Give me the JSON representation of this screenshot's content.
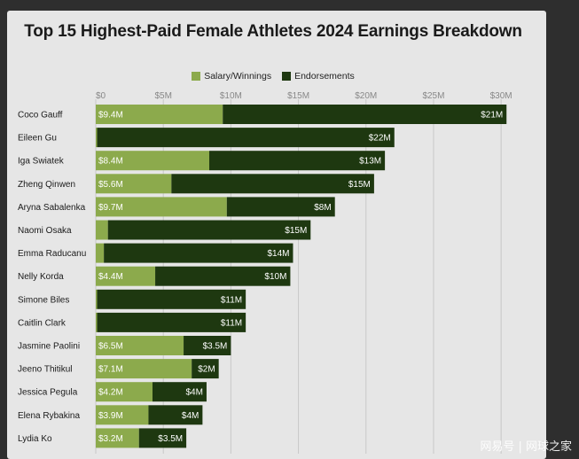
{
  "colors": {
    "salary": "#8caa4c",
    "endorsements": "#1e3810",
    "grid": "#c8c8c8",
    "axis_text": "#888888"
  },
  "watermark": "网易号 | 网球之家",
  "chart_data": {
    "type": "bar",
    "orientation": "horizontal",
    "stacked": true,
    "title": "Top 15 Highest-Paid Female Athletes 2024 Earnings Breakdown",
    "legend_position": "top",
    "grid": true,
    "xlim": [
      0,
      31.5
    ],
    "x_ticks": [
      0,
      5,
      10,
      15,
      20,
      25,
      30
    ],
    "x_tick_labels": [
      "$0",
      "$5M",
      "$10M",
      "$15M",
      "$20M",
      "$25M",
      "$30M"
    ],
    "categories": [
      "Coco Gauff",
      "Eileen Gu",
      "Iga Swiatek",
      "Zheng Qinwen",
      "Aryna Sabalenka",
      "Naomi Osaka",
      "Emma Raducanu",
      "Nelly Korda",
      "Simone Biles",
      "Caitlin Clark",
      "Jasmine Paolini",
      "Jeeno Thitikul",
      "Jessica Pegula",
      "Elena Rybakina",
      "Lydia Ko"
    ],
    "series": [
      {
        "name": "Salary/Winnings",
        "values": [
          9.4,
          0.1,
          8.4,
          5.6,
          9.7,
          0.9,
          0.6,
          4.4,
          0.1,
          0.1,
          6.5,
          7.1,
          4.2,
          3.9,
          3.2
        ],
        "labels": [
          "$9.4M",
          "",
          "$8.4M",
          "$5.6M",
          "$9.7M",
          "",
          "",
          "$4.4M",
          "",
          "",
          "$6.5M",
          "$7.1M",
          "$4.2M",
          "$3.9M",
          "$3.2M"
        ]
      },
      {
        "name": "Endorsements",
        "values": [
          21,
          22,
          13,
          15,
          8,
          15,
          14,
          10,
          11,
          11,
          3.5,
          2,
          4,
          4,
          3.5
        ],
        "labels": [
          "$21M",
          "$22M",
          "$13M",
          "$15M",
          "$8M",
          "$15M",
          "$14M",
          "$10M",
          "$11M",
          "$11M",
          "$3.5M",
          "$2M",
          "$4M",
          "$4M",
          "$3.5M"
        ]
      }
    ]
  }
}
